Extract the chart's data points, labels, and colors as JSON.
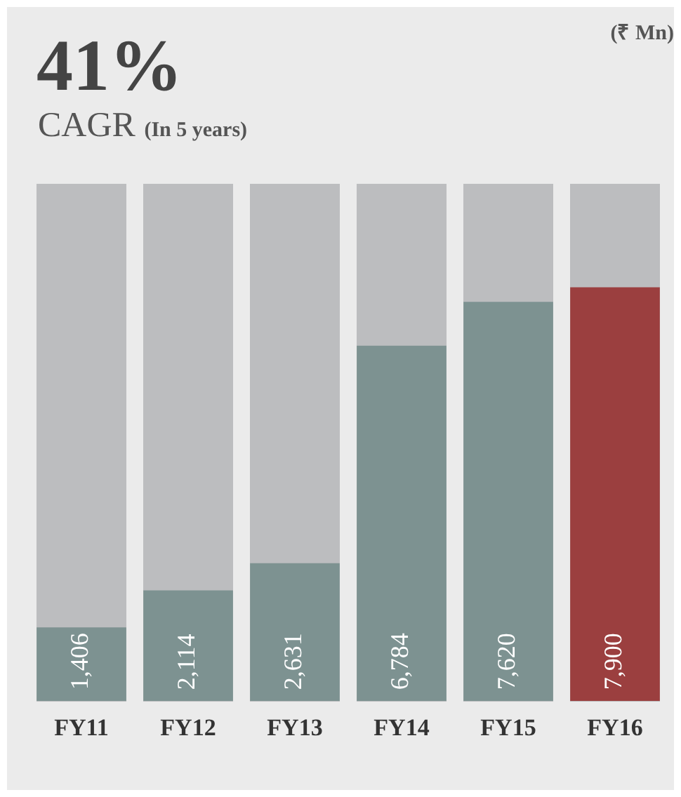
{
  "chart_data": {
    "type": "bar",
    "title": "41%",
    "subtitle": "CAGR (In 5 years)",
    "annotations": [
      "(₹ Mn)"
    ],
    "categories": [
      "FY11",
      "FY12",
      "FY13",
      "FY14",
      "FY15",
      "FY16"
    ],
    "values": [
      1406,
      2114,
      2631,
      6784,
      7620,
      7900
    ],
    "colors": [
      "#7d9291",
      "#7d9291",
      "#7d9291",
      "#7d9291",
      "#7d9291",
      "#9b3f3f"
    ],
    "value_labels": [
      "1,406",
      "2,114",
      "2,631",
      "6,784",
      "7,620",
      "7,900"
    ],
    "grid": false,
    "legend": false
  }
}
